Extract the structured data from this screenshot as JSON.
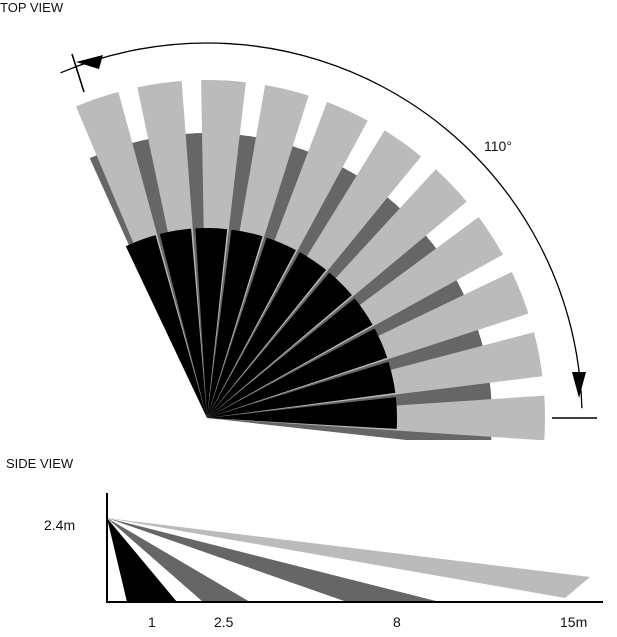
{
  "top_view": {
    "title": "TOP VIEW",
    "angle_label": "110°",
    "beam_count": 11
  },
  "side_view": {
    "title": "SIDE VIEW",
    "height_label": "2.4m",
    "distance_labels": [
      "1",
      "2.5",
      "8",
      "15m"
    ]
  },
  "colors": {
    "light_beam": "#bbbbbb",
    "mid_beam": "#666666",
    "near_beam": "#000000",
    "line": "#000000"
  }
}
